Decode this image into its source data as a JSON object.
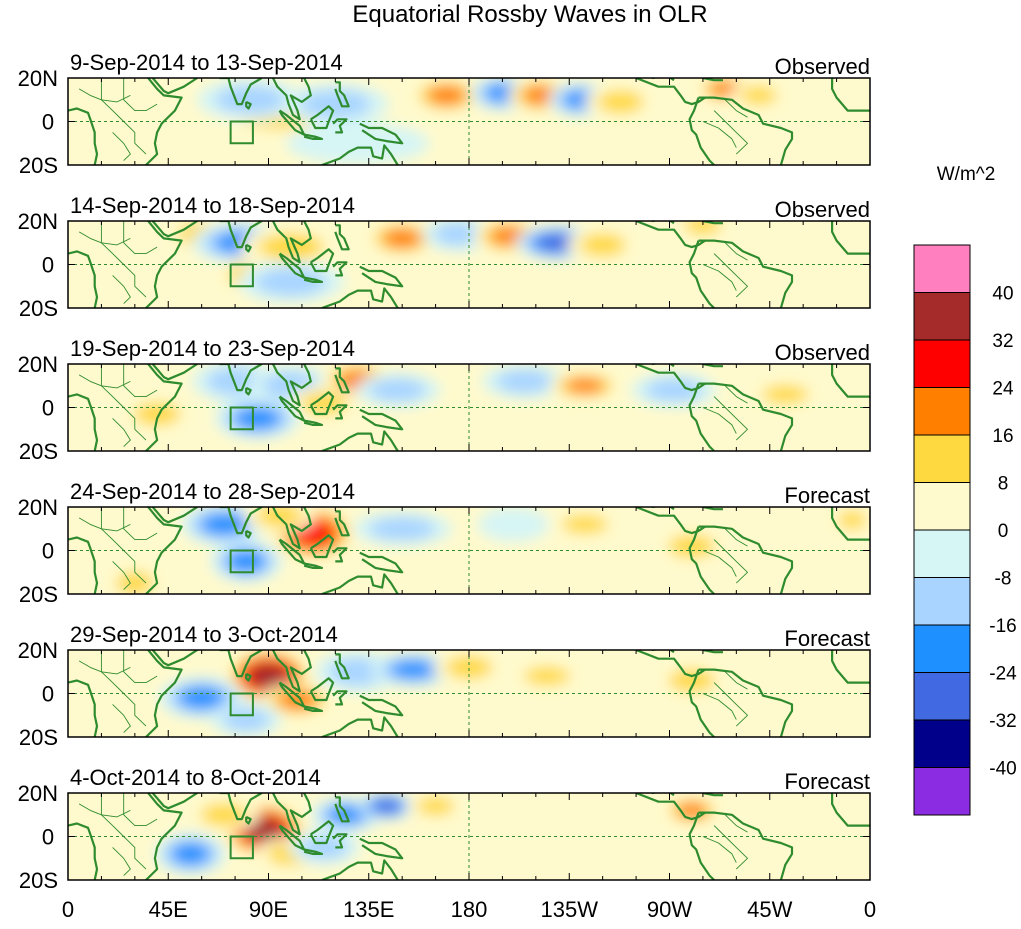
{
  "chart_data": {
    "type": "heatmap",
    "title": "Equatorial Rossby Waves in OLR",
    "units": "W/m^2",
    "x_ticks": [
      "0",
      "45E",
      "90E",
      "135E",
      "180",
      "135W",
      "90W",
      "45W",
      "0"
    ],
    "y_ticks": [
      "20N",
      "0",
      "20S"
    ],
    "xlim": [
      0,
      360
    ],
    "ylim": [
      -20,
      20
    ],
    "colorbar": {
      "levels": [
        40,
        32,
        24,
        16,
        8,
        0,
        -8,
        -16,
        -24,
        -32,
        -40
      ],
      "labels": [
        "40",
        "32",
        "24",
        "16",
        "8",
        "0",
        "-8",
        "-16",
        "-24",
        "-32",
        "-40"
      ],
      "colors": [
        "#ff7fbf",
        "#a52a2a",
        "#ff0000",
        "#ff7f00",
        "#ffd940",
        "#fffacd",
        "#d6f5f5",
        "#a8d4ff",
        "#1e90ff",
        "#4169e1",
        "#00008b",
        "#8b2be2"
      ]
    },
    "panels": [
      {
        "period": "9-Sep-2014 to 13-Sep-2014",
        "status": "Observed",
        "features": [
          {
            "lon": 95,
            "lat": 4,
            "amp": 10,
            "wx": 20,
            "wy": 7
          },
          {
            "lon": 82,
            "lat": 10,
            "amp": -12,
            "wx": 15,
            "wy": 6
          },
          {
            "lon": 120,
            "lat": 8,
            "amp": -14,
            "wx": 15,
            "wy": 6
          },
          {
            "lon": 170,
            "lat": 12,
            "amp": 20,
            "wx": 10,
            "wy": 5
          },
          {
            "lon": 195,
            "lat": 13,
            "amp": -20,
            "wx": 9,
            "wy": 5
          },
          {
            "lon": 212,
            "lat": 12,
            "amp": 22,
            "wx": 9,
            "wy": 5
          },
          {
            "lon": 230,
            "lat": 10,
            "amp": -24,
            "wx": 9,
            "wy": 5
          },
          {
            "lon": 248,
            "lat": 9,
            "amp": 10,
            "wx": 10,
            "wy": 5
          },
          {
            "lon": 295,
            "lat": 15,
            "amp": 24,
            "wx": 8,
            "wy": 4
          },
          {
            "lon": 310,
            "lat": 12,
            "amp": 12,
            "wx": 8,
            "wy": 4
          },
          {
            "lon": 130,
            "lat": -10,
            "amp": -6,
            "wx": 20,
            "wy": 6
          }
        ]
      },
      {
        "period": "14-Sep-2014 to 18-Sep-2014",
        "status": "Observed",
        "features": [
          {
            "lon": 58,
            "lat": 14,
            "amp": 16,
            "wx": 8,
            "wy": 5
          },
          {
            "lon": 78,
            "lat": 10,
            "amp": -18,
            "wx": 14,
            "wy": 6
          },
          {
            "lon": 100,
            "lat": 8,
            "amp": 10,
            "wx": 14,
            "wy": 6
          },
          {
            "lon": 150,
            "lat": 12,
            "amp": 18,
            "wx": 10,
            "wy": 5
          },
          {
            "lon": 175,
            "lat": 14,
            "amp": -16,
            "wx": 10,
            "wy": 5
          },
          {
            "lon": 198,
            "lat": 13,
            "amp": 20,
            "wx": 10,
            "wy": 5
          },
          {
            "lon": 220,
            "lat": 10,
            "amp": -30,
            "wx": 12,
            "wy": 5
          },
          {
            "lon": 240,
            "lat": 9,
            "amp": 16,
            "wx": 10,
            "wy": 5
          },
          {
            "lon": 285,
            "lat": 18,
            "amp": 16,
            "wx": 8,
            "wy": 4
          },
          {
            "lon": 80,
            "lat": -5,
            "amp": 12,
            "wx": 8,
            "wy": 5
          },
          {
            "lon": 100,
            "lat": -8,
            "amp": -12,
            "wx": 15,
            "wy": 6
          }
        ]
      },
      {
        "period": "19-Sep-2014 to 23-Sep-2014",
        "status": "Observed",
        "features": [
          {
            "lon": 75,
            "lat": 12,
            "amp": -16,
            "wx": 12,
            "wy": 6
          },
          {
            "lon": 100,
            "lat": 10,
            "amp": -14,
            "wx": 12,
            "wy": 6
          },
          {
            "lon": 130,
            "lat": 12,
            "amp": 22,
            "wx": 10,
            "wy": 6
          },
          {
            "lon": 115,
            "lat": 2,
            "amp": 12,
            "wx": 10,
            "wy": 5
          },
          {
            "lon": 148,
            "lat": 8,
            "amp": -10,
            "wx": 12,
            "wy": 5
          },
          {
            "lon": 205,
            "lat": 12,
            "amp": -14,
            "wx": 12,
            "wy": 5
          },
          {
            "lon": 232,
            "lat": 10,
            "amp": 22,
            "wx": 10,
            "wy": 4
          },
          {
            "lon": 272,
            "lat": 8,
            "amp": -10,
            "wx": 12,
            "wy": 5
          },
          {
            "lon": 322,
            "lat": 6,
            "amp": 14,
            "wx": 10,
            "wy": 4
          },
          {
            "lon": 40,
            "lat": -3,
            "amp": 12,
            "wx": 10,
            "wy": 5
          },
          {
            "lon": 85,
            "lat": -5,
            "amp": -22,
            "wx": 12,
            "wy": 6
          }
        ]
      },
      {
        "period": "24-Sep-2014 to 28-Sep-2014",
        "status": "Forecast",
        "features": [
          {
            "lon": 70,
            "lat": 12,
            "amp": -18,
            "wx": 12,
            "wy": 6
          },
          {
            "lon": 110,
            "lat": 8,
            "amp": 30,
            "wx": 12,
            "wy": 8
          },
          {
            "lon": 95,
            "lat": 16,
            "amp": 12,
            "wx": 10,
            "wy": 5
          },
          {
            "lon": 150,
            "lat": 10,
            "amp": -16,
            "wx": 14,
            "wy": 5
          },
          {
            "lon": 232,
            "lat": 12,
            "amp": 14,
            "wx": 10,
            "wy": 4
          },
          {
            "lon": 200,
            "lat": 12,
            "amp": -8,
            "wx": 10,
            "wy": 5
          },
          {
            "lon": 280,
            "lat": 2,
            "amp": 12,
            "wx": 10,
            "wy": 5
          },
          {
            "lon": 80,
            "lat": -5,
            "amp": -22,
            "wx": 10,
            "wy": 6
          },
          {
            "lon": 30,
            "lat": -15,
            "amp": 12,
            "wx": 8,
            "wy": 5
          },
          {
            "lon": 352,
            "lat": 14,
            "amp": 12,
            "wx": 6,
            "wy": 4
          }
        ]
      },
      {
        "period": "29-Sep-2014 to 3-Oct-2014",
        "status": "Forecast",
        "features": [
          {
            "lon": 90,
            "lat": 8,
            "amp": 34,
            "wx": 12,
            "wy": 8
          },
          {
            "lon": 103,
            "lat": -3,
            "amp": 22,
            "wx": 10,
            "wy": 5
          },
          {
            "lon": 130,
            "lat": 10,
            "amp": -14,
            "wx": 12,
            "wy": 6
          },
          {
            "lon": 155,
            "lat": 11,
            "amp": -24,
            "wx": 12,
            "wy": 5
          },
          {
            "lon": 180,
            "lat": 12,
            "amp": 12,
            "wx": 10,
            "wy": 5
          },
          {
            "lon": 280,
            "lat": 6,
            "amp": 16,
            "wx": 10,
            "wy": 5
          },
          {
            "lon": 60,
            "lat": -2,
            "amp": -22,
            "wx": 12,
            "wy": 6
          },
          {
            "lon": 80,
            "lat": -12,
            "amp": -16,
            "wx": 10,
            "wy": 5
          },
          {
            "lon": 215,
            "lat": 8,
            "amp": 10,
            "wx": 10,
            "wy": 4
          }
        ]
      },
      {
        "period": "4-Oct-2014 to 8-Oct-2014",
        "status": "Forecast",
        "features": [
          {
            "lon": 88,
            "lat": 3,
            "amp": 36,
            "wx": 12,
            "wy": 8
          },
          {
            "lon": 70,
            "lat": 10,
            "amp": 10,
            "wx": 10,
            "wy": 5
          },
          {
            "lon": 125,
            "lat": 10,
            "amp": -18,
            "wx": 10,
            "wy": 5
          },
          {
            "lon": 143,
            "lat": 14,
            "amp": -28,
            "wx": 8,
            "wy": 4
          },
          {
            "lon": 165,
            "lat": 14,
            "amp": 14,
            "wx": 8,
            "wy": 4
          },
          {
            "lon": 280,
            "lat": 12,
            "amp": 18,
            "wx": 8,
            "wy": 4
          },
          {
            "lon": 55,
            "lat": -8,
            "amp": -22,
            "wx": 10,
            "wy": 6
          },
          {
            "lon": 100,
            "lat": -8,
            "amp": 14,
            "wx": 10,
            "wy": 5
          },
          {
            "lon": 115,
            "lat": -5,
            "amp": -10,
            "wx": 10,
            "wy": 5
          },
          {
            "lon": 340,
            "lat": 10,
            "amp": 8,
            "wx": 8,
            "wy": 4
          }
        ]
      }
    ]
  }
}
